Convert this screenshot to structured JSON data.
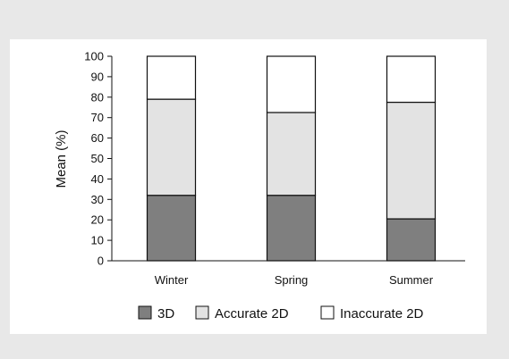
{
  "chart_data": {
    "type": "bar",
    "stacked": true,
    "categories": [
      "Winter",
      "Spring",
      "Summer"
    ],
    "ylabel": "Mean (%)",
    "xlabel": "",
    "ylim": [
      0,
      100
    ],
    "yticks": [
      0,
      10,
      20,
      30,
      40,
      50,
      60,
      70,
      80,
      90,
      100
    ],
    "grid": false,
    "legend_position": "bottom",
    "series": [
      {
        "name": "3D",
        "values": [
          32,
          32,
          20.5
        ],
        "color": "#7f7f7f"
      },
      {
        "name": "Accurate 2D",
        "values": [
          47,
          40.5,
          57
        ],
        "color": "#e3e3e3"
      },
      {
        "name": "Inaccurate 2D",
        "values": [
          21,
          27.5,
          22.5
        ],
        "color": "#ffffff"
      }
    ]
  }
}
